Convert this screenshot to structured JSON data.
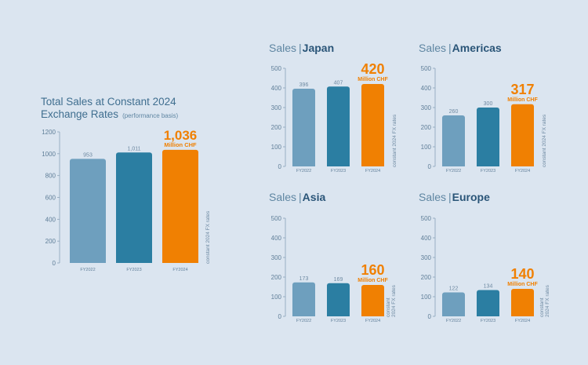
{
  "colors": {
    "background": "#dbe5f0",
    "fy2022": "#6e9fbe",
    "fy2023": "#2b7ea2",
    "fy2024": "#f08002",
    "title": "#3f6e8f",
    "region": "#2a5578"
  },
  "main": {
    "title_line1": "Total Sales at Constant 2024",
    "title_line2": "Exchange Rates",
    "title_note": "(performance basis)"
  },
  "labels": {
    "sales": "Sales",
    "million_chf": "Million CHF",
    "fx_note": "constant 2024 FX rates",
    "fx_note_line1": "constant",
    "fx_note_line2": "2024 FX rates"
  },
  "chart_data": [
    {
      "id": "total",
      "type": "bar",
      "title": "Total Sales at Constant 2024 Exchange Rates (performance basis)",
      "categories": [
        "FY2022",
        "FY2023",
        "FY2024"
      ],
      "values": [
        953,
        1011,
        1036
      ],
      "value_labels": [
        "953",
        "1,011",
        "1,036"
      ],
      "highlight": "1,036",
      "unit": "Million CHF",
      "ylim": [
        0,
        1200
      ],
      "yticks": [
        0,
        200,
        400,
        600,
        800,
        1000,
        1200
      ],
      "note": "constant 2024 FX rates"
    },
    {
      "id": "japan",
      "type": "bar",
      "region": "Japan",
      "categories": [
        "FY2022",
        "FY2023",
        "FY2024"
      ],
      "values": [
        396,
        407,
        420
      ],
      "value_labels": [
        "396",
        "407",
        "420"
      ],
      "highlight": "420",
      "unit": "Million CHF",
      "ylim": [
        0,
        500
      ],
      "yticks": [
        0,
        100,
        200,
        300,
        400,
        500
      ],
      "note": "constant 2024 FX rates"
    },
    {
      "id": "americas",
      "type": "bar",
      "region": "Americas",
      "categories": [
        "FY2022",
        "FY2023",
        "FY2024"
      ],
      "values": [
        260,
        300,
        317
      ],
      "value_labels": [
        "260",
        "300",
        "317"
      ],
      "highlight": "317",
      "unit": "Million CHF",
      "ylim": [
        0,
        500
      ],
      "yticks": [
        0,
        100,
        200,
        300,
        400,
        500
      ],
      "note": "constant 2024 FX rates"
    },
    {
      "id": "asia",
      "type": "bar",
      "region": "Asia",
      "categories": [
        "FY2022",
        "FY2023",
        "FY2024"
      ],
      "values": [
        173,
        169,
        160
      ],
      "value_labels": [
        "173",
        "169",
        "160"
      ],
      "highlight": "160",
      "unit": "Million CHF",
      "ylim": [
        0,
        500
      ],
      "yticks": [
        0,
        100,
        200,
        300,
        400,
        500
      ],
      "note": "constant 2024 FX rates"
    },
    {
      "id": "europe",
      "type": "bar",
      "region": "Europe",
      "categories": [
        "FY2022",
        "FY2023",
        "FY2024"
      ],
      "values": [
        122,
        134,
        140
      ],
      "value_labels": [
        "122",
        "134",
        "140"
      ],
      "highlight": "140",
      "unit": "Million CHF",
      "ylim": [
        0,
        500
      ],
      "yticks": [
        0,
        100,
        200,
        300,
        400,
        500
      ],
      "note": "constant 2024 FX rates"
    }
  ]
}
